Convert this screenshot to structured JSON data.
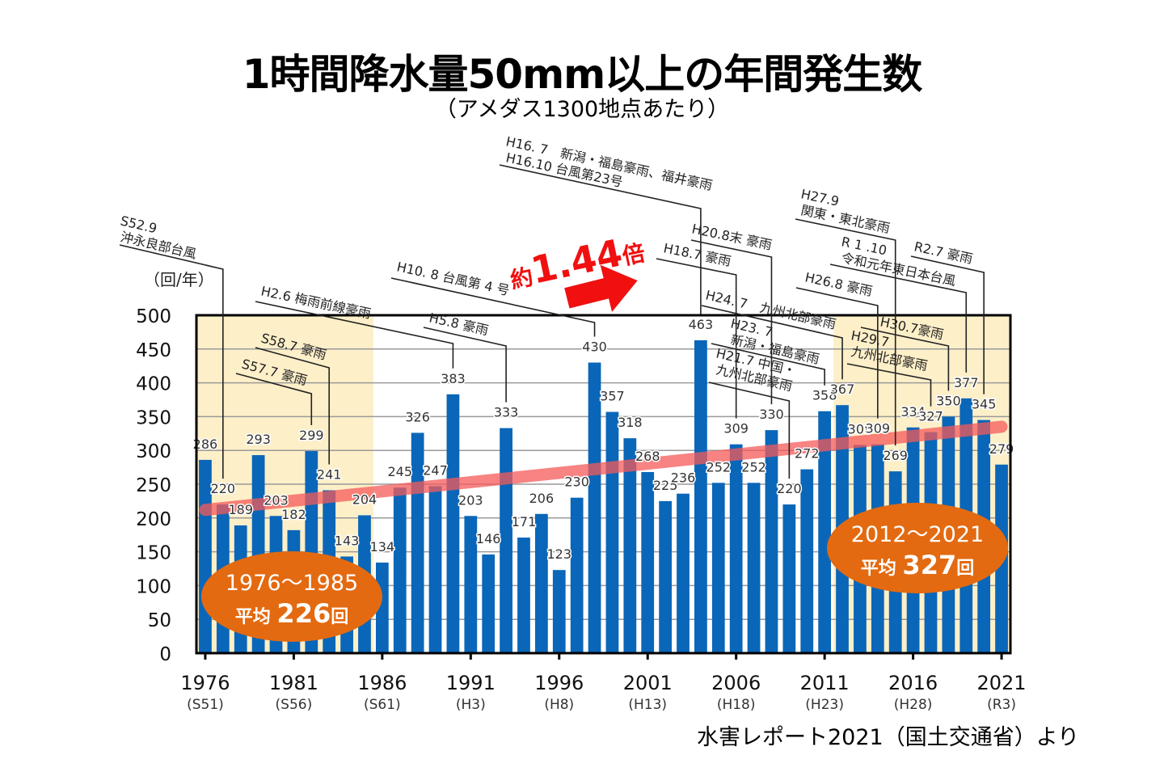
{
  "title": "1時間降水量50mm以上の年間発生数",
  "subtitle": "（アメダス1300地点あたり）",
  "source": "水害レポート2021（国土交通省）より",
  "chart_data": {
    "type": "bar",
    "title": "1時間降水量50mm以上の年間発生数",
    "subtitle": "（アメダス1300地点あたり）",
    "ylabel": "（回/年）",
    "xlabel": "",
    "ylim": [
      0,
      500
    ],
    "yticks": [
      0,
      50,
      100,
      150,
      200,
      250,
      300,
      350,
      400,
      450,
      500
    ],
    "grid": true,
    "x": [
      1976,
      1977,
      1978,
      1979,
      1980,
      1981,
      1982,
      1983,
      1984,
      1985,
      1986,
      1987,
      1988,
      1989,
      1990,
      1991,
      1992,
      1993,
      1994,
      1995,
      1996,
      1997,
      1998,
      1999,
      2000,
      2001,
      2002,
      2003,
      2004,
      2005,
      2006,
      2007,
      2008,
      2009,
      2010,
      2011,
      2012,
      2013,
      2014,
      2015,
      2016,
      2017,
      2018,
      2019,
      2020,
      2021
    ],
    "values": [
      286,
      220,
      189,
      293,
      203,
      182,
      299,
      241,
      143,
      204,
      134,
      245,
      326,
      247,
      383,
      203,
      146,
      333,
      171,
      206,
      123,
      230,
      430,
      357,
      318,
      268,
      225,
      236,
      463,
      252,
      309,
      252,
      330,
      220,
      272,
      358,
      367,
      308,
      309,
      269,
      334,
      327,
      350,
      377,
      345,
      279
    ],
    "xtick_labels": [
      {
        "year": 1976,
        "label": "1976",
        "era": "(S51)"
      },
      {
        "year": 1981,
        "label": "1981",
        "era": "(S56)"
      },
      {
        "year": 1986,
        "label": "1986",
        "era": "(S61)"
      },
      {
        "year": 1991,
        "label": "1991",
        "era": "(H3)"
      },
      {
        "year": 1996,
        "label": "1996",
        "era": "(H8)"
      },
      {
        "year": 2001,
        "label": "2001",
        "era": "(H13)"
      },
      {
        "year": 2006,
        "label": "2006",
        "era": "(H18)"
      },
      {
        "year": 2011,
        "label": "2011",
        "era": "(H23)"
      },
      {
        "year": 2016,
        "label": "2016",
        "era": "(H28)"
      },
      {
        "year": 2021,
        "label": "2021",
        "era": "(R3)"
      }
    ],
    "bar_color": "#0a66b8",
    "shaded_periods": [
      {
        "from": 1976,
        "to": 1985,
        "color": "#fdefc8"
      },
      {
        "from": 2012,
        "to": 2021,
        "color": "#fdefc8"
      }
    ],
    "trend_line": {
      "from": {
        "x": 1976,
        "y": 212
      },
      "to": {
        "x": 2021,
        "y": 335
      },
      "color": "#f55a5a"
    },
    "averages": [
      {
        "period": "1976〜1985",
        "label": "平均",
        "value": 226,
        "unit": "回",
        "color": "#e36a10"
      },
      {
        "period": "2012〜2021",
        "label": "平均",
        "value": 327,
        "unit": "回",
        "color": "#e36a10"
      }
    ],
    "ratio_annotation": {
      "prefix": "約",
      "value": "1.44",
      "suffix": "倍",
      "color": "#f01010"
    },
    "event_annotations": [
      {
        "year": 1977,
        "text": [
          "S52.9",
          "沖永良部台風"
        ]
      },
      {
        "year": 1982,
        "text": [
          "S57.7 豪雨"
        ]
      },
      {
        "year": 1983,
        "text": [
          "S58.7 豪雨"
        ]
      },
      {
        "year": 1990,
        "text": [
          "H2.6 梅雨前線豪雨"
        ]
      },
      {
        "year": 1993,
        "text": [
          "H5.8 豪雨"
        ]
      },
      {
        "year": 1998,
        "text": [
          "H10. 8 台風第 4 号"
        ]
      },
      {
        "year": 2004,
        "text": [
          "H16. 7　新潟・福島豪雨、福井豪雨",
          "H16.10 台風第23号"
        ]
      },
      {
        "year": 2006,
        "text": [
          "H18.7 豪雨"
        ]
      },
      {
        "year": 2008,
        "text": [
          "H20.8末 豪雨"
        ]
      },
      {
        "year": 2009,
        "text": [
          "H21.7 中国・",
          "九州北部豪雨"
        ]
      },
      {
        "year": 2011,
        "text": [
          "H23. 7",
          "新潟・福島豪雨"
        ]
      },
      {
        "year": 2012,
        "text": [
          "H24. 7　九州北部豪雨"
        ]
      },
      {
        "year": 2014,
        "text": [
          "H26.8 豪雨"
        ]
      },
      {
        "year": 2015,
        "text": [
          "H27.9",
          "関東・東北豪雨"
        ]
      },
      {
        "year": 2017,
        "text": [
          "H29.7",
          "九州北部豪雨"
        ]
      },
      {
        "year": 2018,
        "text": [
          "H30.7豪雨"
        ]
      },
      {
        "year": 2019,
        "text": [
          "R 1 .10",
          "令和元年東日本台風"
        ]
      },
      {
        "year": 2020,
        "text": [
          "R2.7 豪雨"
        ]
      }
    ]
  }
}
